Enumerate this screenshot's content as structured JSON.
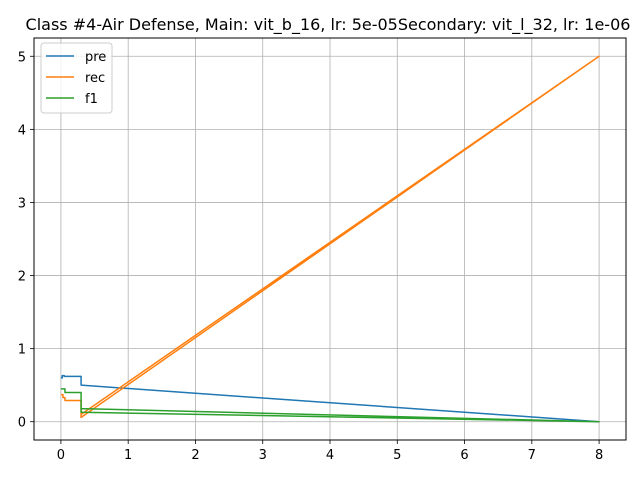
{
  "chart_data": {
    "type": "line",
    "title": "Class #4-Air Defense, Main: vit_b_16, lr: 5e-05Secondary: vit_l_32, lr: 1e-06",
    "xlabel": "",
    "ylabel": "",
    "xlim": [
      -0.4,
      8.4
    ],
    "ylim": [
      -0.25,
      5.25
    ],
    "xticks": [
      0,
      1,
      2,
      3,
      4,
      5,
      6,
      7,
      8
    ],
    "yticks": [
      0,
      1,
      2,
      3,
      4,
      5
    ],
    "grid": true,
    "legend": {
      "placement": "top-left"
    },
    "series": [
      {
        "name": "pre",
        "color": "#1f77b4",
        "points": [
          [
            0,
            0.6
          ],
          [
            0.02,
            0.6
          ],
          [
            0.02,
            0.63
          ],
          [
            0.05,
            0.63
          ],
          [
            0.05,
            0.62
          ],
          [
            0.3,
            0.62
          ],
          [
            0.3,
            0.5
          ],
          [
            8,
            0.0
          ]
        ]
      },
      {
        "name": "rec",
        "color": "#ff7f0e",
        "points": [
          [
            0,
            0.37
          ],
          [
            0.03,
            0.37
          ],
          [
            0.03,
            0.33
          ],
          [
            0.06,
            0.33
          ],
          [
            0.06,
            0.29
          ],
          [
            0.3,
            0.29
          ],
          [
            0.3,
            0.06
          ],
          [
            8,
            5.0
          ],
          [
            0.3,
            0.1
          ]
        ]
      },
      {
        "name": "f1",
        "color": "#2ca02c",
        "points": [
          [
            0,
            0.45
          ],
          [
            0.06,
            0.45
          ],
          [
            0.06,
            0.4
          ],
          [
            0.3,
            0.4
          ],
          [
            0.3,
            0.13
          ],
          [
            8,
            0.0
          ],
          [
            0.3,
            0.18
          ]
        ]
      }
    ]
  }
}
